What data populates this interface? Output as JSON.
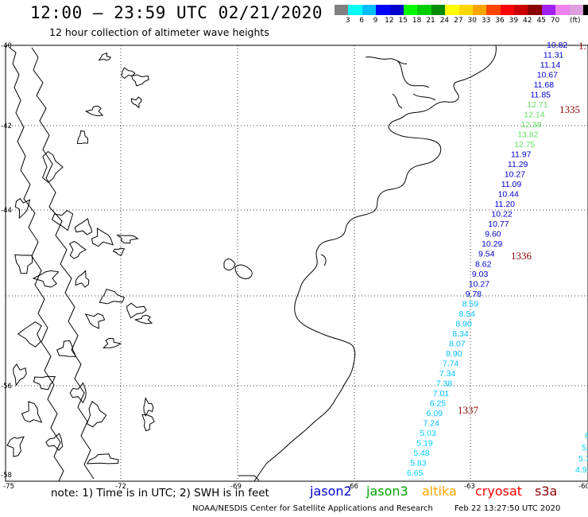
{
  "header": {
    "title": "12:00 – 23:59 UTC 02/21/2020",
    "subtitle": "12 hour collection of altimeter wave heights"
  },
  "colorbar": {
    "colors": [
      "#808080",
      "#00ffff",
      "#00bfff",
      "#0000ff",
      "#0000cd",
      "#00ff00",
      "#00cd00",
      "#008b00",
      "#ffff00",
      "#ffd700",
      "#ffa500",
      "#ff4500",
      "#ff0000",
      "#cd0000",
      "#8b0000",
      "#a020f0",
      "#ee82ee",
      "#dda0dd",
      "#000000"
    ],
    "labels": [
      "3",
      "6",
      "9",
      "12",
      "15",
      "18",
      "21",
      "24",
      "27",
      "30",
      "33",
      "36",
      "39",
      "42",
      "45",
      "70"
    ],
    "unit": "(ft)"
  },
  "axes": {
    "lat_labels": [
      "-40",
      "-42",
      "-44",
      "-56",
      "-58"
    ],
    "lon_labels": [
      "-75",
      "-72",
      "-69",
      "-66",
      "-63",
      "-60"
    ]
  },
  "wave_heights": [
    {
      "v": "10.82",
      "color": "#0000cd"
    },
    {
      "v": "11.31",
      "color": "#0000cd"
    },
    {
      "v": "11.14",
      "color": "#0000cd"
    },
    {
      "v": "10.67",
      "color": "#0000cd"
    },
    {
      "v": "11.68",
      "color": "#0000cd"
    },
    {
      "v": "11.85",
      "color": "#0000cd"
    },
    {
      "v": "12.71",
      "color": "#66e066"
    },
    {
      "v": "12.14",
      "color": "#66e066"
    },
    {
      "v": "12.38",
      "color": "#66e066"
    },
    {
      "v": "13.82",
      "color": "#66e066"
    },
    {
      "v": "12.75",
      "color": "#66e066"
    },
    {
      "v": "11.97",
      "color": "#0000cd"
    },
    {
      "v": "11.29",
      "color": "#0000cd"
    },
    {
      "v": "10.27",
      "color": "#0000cd"
    },
    {
      "v": "11.09",
      "color": "#0000cd"
    },
    {
      "v": "10.44",
      "color": "#0000cd"
    },
    {
      "v": "11.20",
      "color": "#0000cd"
    },
    {
      "v": "10.22",
      "color": "#0000cd"
    },
    {
      "v": "10.77",
      "color": "#0000cd"
    },
    {
      "v": "9.60",
      "color": "#0000cd"
    },
    {
      "v": "10.29",
      "color": "#0000cd"
    },
    {
      "v": "9.54",
      "color": "#0000cd"
    },
    {
      "v": "8.62",
      "color": "#0000cd"
    },
    {
      "v": "9.03",
      "color": "#0000cd"
    },
    {
      "v": "10.27",
      "color": "#0000cd"
    },
    {
      "v": "9.78",
      "color": "#0000cd"
    },
    {
      "v": "8.59",
      "color": "#00bfff"
    },
    {
      "v": "8.54",
      "color": "#00bfff"
    },
    {
      "v": "8.90",
      "color": "#00bfff"
    },
    {
      "v": "8.34",
      "color": "#00bfff"
    },
    {
      "v": "8.07",
      "color": "#00bfff"
    },
    {
      "v": "8.90",
      "color": "#00bfff"
    },
    {
      "v": "7.74",
      "color": "#00bfff"
    },
    {
      "v": "7.34",
      "color": "#00bfff"
    },
    {
      "v": "7.38",
      "color": "#00bfff"
    },
    {
      "v": "7.01",
      "color": "#00bfff"
    },
    {
      "v": "6.25",
      "color": "#00bfff"
    },
    {
      "v": "6.09",
      "color": "#00bfff"
    },
    {
      "v": "7.24",
      "color": "#00bfff"
    },
    {
      "v": "5.03",
      "color": "#00d0ff"
    },
    {
      "v": "5.19",
      "color": "#00d0ff"
    },
    {
      "v": "5.48",
      "color": "#00d0ff"
    },
    {
      "v": "5.83",
      "color": "#00d0ff"
    },
    {
      "v": "6.65",
      "color": "#00d0ff"
    }
  ],
  "edge_values": [
    "6",
    "5.",
    "5.7",
    "4.9"
  ],
  "passes": [
    "1335",
    "1336",
    "1337",
    "1."
  ],
  "footer": {
    "note": "note: 1) Time is in UTC; 2) SWH is in feet",
    "legend": [
      {
        "name": "jason2",
        "color": "#0000cd"
      },
      {
        "name": "jason3",
        "color": "#00a000"
      },
      {
        "name": "altika",
        "color": "#ffa500"
      },
      {
        "name": "cryosat",
        "color": "#ff0000"
      },
      {
        "name": "s3a",
        "color": "#8b0000"
      }
    ],
    "credit": "NOAA/NESDIS Center for Satellite Applications and Research",
    "timestamp": "Feb 22 13:27:50 UTC 2020"
  }
}
